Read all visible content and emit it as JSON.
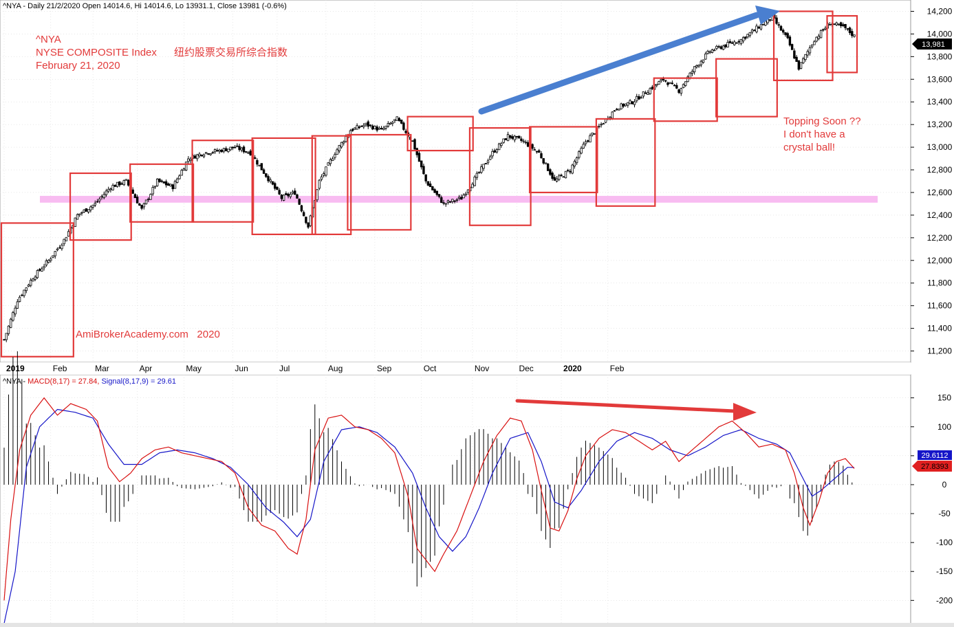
{
  "header": {
    "price_title": "^NYA - Daily 21/2/2020 Open 14014.6, Hi 14014.6, Lo 13931.1, Close 13981 (-0.6%)",
    "macd_prefix": "^NYA - ",
    "macd_label": "MACD(8,17) = 27.84,",
    "signal_label": "Signal(8,17,9) = 29.61"
  },
  "annotations": {
    "symbol": "^NYA",
    "index_name": "NYSE COMPOSITE Index",
    "index_name_cn": "纽约股票交易所综合指数",
    "date": "February 21, 2020",
    "watermark": "AmiBrokerAcademy.com   2020",
    "topping_1": "Topping Soon ??",
    "topping_2": "I don't have a",
    "topping_3": "crystal ball!"
  },
  "colors": {
    "box": "#e23a3a",
    "band": "#f8b8f0",
    "arrow_up": "#4a7fd0",
    "arrow_down": "#e23a3a",
    "macd_line": "#d81010",
    "signal_line": "#1515c8",
    "grid": "#d9d9d9"
  },
  "chart_data": [
    {
      "type": "candlestick",
      "series_name": "^NYA",
      "ylim": [
        11100,
        14300
      ],
      "y_ticks": [
        11200,
        11400,
        11600,
        11800,
        12000,
        12200,
        12400,
        12600,
        12800,
        13000,
        13200,
        13400,
        13600,
        13800,
        14000,
        14200
      ],
      "last_value_label": "13,981",
      "x_labels": [
        "2019",
        "Feb",
        "Mar",
        "Apr",
        "May",
        "Jun",
        "Jul",
        "Aug",
        "Sep",
        "Oct",
        "Nov",
        "Dec",
        "2020",
        "Feb"
      ],
      "bold_x_labels": [
        "2019",
        "2020"
      ],
      "approx_close_path": [
        {
          "d": 0,
          "v": 11300
        },
        {
          "d": 6,
          "v": 11650
        },
        {
          "d": 13,
          "v": 11850
        },
        {
          "d": 20,
          "v": 12000
        },
        {
          "d": 27,
          "v": 12180
        },
        {
          "d": 33,
          "v": 12400
        },
        {
          "d": 41,
          "v": 12500
        },
        {
          "d": 48,
          "v": 12650
        },
        {
          "d": 55,
          "v": 12700
        },
        {
          "d": 62,
          "v": 12450
        },
        {
          "d": 69,
          "v": 12700
        },
        {
          "d": 76,
          "v": 12650
        },
        {
          "d": 83,
          "v": 12900
        },
        {
          "d": 90,
          "v": 12950
        },
        {
          "d": 97,
          "v": 12970
        },
        {
          "d": 104,
          "v": 13000
        },
        {
          "d": 111,
          "v": 12950
        },
        {
          "d": 118,
          "v": 12750
        },
        {
          "d": 125,
          "v": 12550
        },
        {
          "d": 131,
          "v": 12600
        },
        {
          "d": 137,
          "v": 12300
        },
        {
          "d": 142,
          "v": 12700
        },
        {
          "d": 149,
          "v": 12950
        },
        {
          "d": 156,
          "v": 13150
        },
        {
          "d": 163,
          "v": 13200
        },
        {
          "d": 170,
          "v": 13150
        },
        {
          "d": 177,
          "v": 13250
        },
        {
          "d": 184,
          "v": 13050
        },
        {
          "d": 190,
          "v": 12700
        },
        {
          "d": 198,
          "v": 12500
        },
        {
          "d": 206,
          "v": 12550
        },
        {
          "d": 213,
          "v": 12750
        },
        {
          "d": 220,
          "v": 12950
        },
        {
          "d": 227,
          "v": 13100
        },
        {
          "d": 234,
          "v": 13050
        },
        {
          "d": 241,
          "v": 12950
        },
        {
          "d": 248,
          "v": 12700
        },
        {
          "d": 255,
          "v": 12800
        },
        {
          "d": 262,
          "v": 13050
        },
        {
          "d": 269,
          "v": 13200
        },
        {
          "d": 276,
          "v": 13350
        },
        {
          "d": 283,
          "v": 13400
        },
        {
          "d": 290,
          "v": 13500
        },
        {
          "d": 297,
          "v": 13600
        },
        {
          "d": 304,
          "v": 13500
        },
        {
          "d": 311,
          "v": 13700
        },
        {
          "d": 318,
          "v": 13850
        },
        {
          "d": 325,
          "v": 13900
        },
        {
          "d": 332,
          "v": 13950
        },
        {
          "d": 339,
          "v": 14050
        },
        {
          "d": 346,
          "v": 14150
        },
        {
          "d": 353,
          "v": 13950
        },
        {
          "d": 358,
          "v": 13700
        },
        {
          "d": 365,
          "v": 13950
        },
        {
          "d": 372,
          "v": 14100
        },
        {
          "d": 379,
          "v": 14050
        },
        {
          "d": 383,
          "v": 13981
        }
      ],
      "support_band": {
        "low": 12510,
        "high": 12570
      },
      "boxes": [
        {
          "lo": 11150,
          "hi": 12330
        },
        {
          "lo": 12180,
          "hi": 12770
        },
        {
          "lo": 12340,
          "hi": 12850
        },
        {
          "lo": 12340,
          "hi": 13060
        },
        {
          "lo": 12230,
          "hi": 13080
        },
        {
          "lo": 12230,
          "hi": 13100
        },
        {
          "lo": 12270,
          "hi": 13110
        },
        {
          "lo": 12970,
          "hi": 13270
        },
        {
          "lo": 12310,
          "hi": 13170
        },
        {
          "lo": 12600,
          "hi": 13180
        },
        {
          "lo": 12480,
          "hi": 13250
        },
        {
          "lo": 13230,
          "hi": 13610
        },
        {
          "lo": 13270,
          "hi": 13780
        },
        {
          "lo": 13590,
          "hi": 14200
        },
        {
          "lo": 13660,
          "hi": 14160
        }
      ]
    },
    {
      "type": "line",
      "title": "MACD(8,17)",
      "ylim": [
        -240,
        190
      ],
      "y_ticks": [
        -200,
        -150,
        -100,
        -50,
        0,
        50,
        100,
        150
      ],
      "series": [
        {
          "name": "MACD(8,17)",
          "last": 27.84,
          "last_label": "27.8393"
        },
        {
          "name": "Signal(8,17,9)",
          "last": 29.61,
          "last_label": "29.6112"
        }
      ],
      "macd_approx": [
        {
          "d": 0,
          "v": -200
        },
        {
          "d": 3,
          "v": -60
        },
        {
          "d": 7,
          "v": 60
        },
        {
          "d": 12,
          "v": 120
        },
        {
          "d": 18,
          "v": 150
        },
        {
          "d": 24,
          "v": 120
        },
        {
          "d": 30,
          "v": 140
        },
        {
          "d": 37,
          "v": 130
        },
        {
          "d": 42,
          "v": 110
        },
        {
          "d": 47,
          "v": 30
        },
        {
          "d": 52,
          "v": 5
        },
        {
          "d": 57,
          "v": 20
        },
        {
          "d": 62,
          "v": 45
        },
        {
          "d": 68,
          "v": 60
        },
        {
          "d": 74,
          "v": 65
        },
        {
          "d": 80,
          "v": 55
        },
        {
          "d": 86,
          "v": 50
        },
        {
          "d": 92,
          "v": 45
        },
        {
          "d": 98,
          "v": 40
        },
        {
          "d": 104,
          "v": 20
        },
        {
          "d": 110,
          "v": -40
        },
        {
          "d": 116,
          "v": -70
        },
        {
          "d": 122,
          "v": -80
        },
        {
          "d": 128,
          "v": -110
        },
        {
          "d": 132,
          "v": -120
        },
        {
          "d": 136,
          "v": -60
        },
        {
          "d": 140,
          "v": 60
        },
        {
          "d": 146,
          "v": 115
        },
        {
          "d": 152,
          "v": 120
        },
        {
          "d": 158,
          "v": 100
        },
        {
          "d": 164,
          "v": 95
        },
        {
          "d": 170,
          "v": 80
        },
        {
          "d": 176,
          "v": 55
        },
        {
          "d": 182,
          "v": -20
        },
        {
          "d": 186,
          "v": -110
        },
        {
          "d": 190,
          "v": -130
        },
        {
          "d": 194,
          "v": -150
        },
        {
          "d": 198,
          "v": -120
        },
        {
          "d": 204,
          "v": -80
        },
        {
          "d": 210,
          "v": -20
        },
        {
          "d": 216,
          "v": 40
        },
        {
          "d": 222,
          "v": 85
        },
        {
          "d": 228,
          "v": 115
        },
        {
          "d": 233,
          "v": 110
        },
        {
          "d": 238,
          "v": 60
        },
        {
          "d": 242,
          "v": -10
        },
        {
          "d": 246,
          "v": -75
        },
        {
          "d": 250,
          "v": -80
        },
        {
          "d": 254,
          "v": -45
        },
        {
          "d": 258,
          "v": 10
        },
        {
          "d": 262,
          "v": 50
        },
        {
          "d": 268,
          "v": 80
        },
        {
          "d": 274,
          "v": 95
        },
        {
          "d": 280,
          "v": 90
        },
        {
          "d": 286,
          "v": 75
        },
        {
          "d": 292,
          "v": 60
        },
        {
          "d": 298,
          "v": 75
        },
        {
          "d": 304,
          "v": 40
        },
        {
          "d": 310,
          "v": 60
        },
        {
          "d": 316,
          "v": 80
        },
        {
          "d": 322,
          "v": 100
        },
        {
          "d": 328,
          "v": 110
        },
        {
          "d": 334,
          "v": 90
        },
        {
          "d": 340,
          "v": 65
        },
        {
          "d": 346,
          "v": 70
        },
        {
          "d": 352,
          "v": 60
        },
        {
          "d": 356,
          "v": 20
        },
        {
          "d": 360,
          "v": -40
        },
        {
          "d": 363,
          "v": -70
        },
        {
          "d": 367,
          "v": -30
        },
        {
          "d": 371,
          "v": 20
        },
        {
          "d": 375,
          "v": 40
        },
        {
          "d": 379,
          "v": 45
        },
        {
          "d": 383,
          "v": 27.84
        }
      ],
      "signal_approx": [
        {
          "d": 0,
          "v": -240
        },
        {
          "d": 5,
          "v": -150
        },
        {
          "d": 10,
          "v": 30
        },
        {
          "d": 16,
          "v": 100
        },
        {
          "d": 24,
          "v": 130
        },
        {
          "d": 32,
          "v": 125
        },
        {
          "d": 40,
          "v": 115
        },
        {
          "d": 47,
          "v": 70
        },
        {
          "d": 54,
          "v": 35
        },
        {
          "d": 62,
          "v": 35
        },
        {
          "d": 70,
          "v": 55
        },
        {
          "d": 78,
          "v": 60
        },
        {
          "d": 86,
          "v": 55
        },
        {
          "d": 94,
          "v": 45
        },
        {
          "d": 102,
          "v": 30
        },
        {
          "d": 110,
          "v": 0
        },
        {
          "d": 118,
          "v": -40
        },
        {
          "d": 126,
          "v": -65
        },
        {
          "d": 132,
          "v": -90
        },
        {
          "d": 138,
          "v": -60
        },
        {
          "d": 144,
          "v": 40
        },
        {
          "d": 152,
          "v": 95
        },
        {
          "d": 160,
          "v": 100
        },
        {
          "d": 168,
          "v": 90
        },
        {
          "d": 176,
          "v": 65
        },
        {
          "d": 184,
          "v": 20
        },
        {
          "d": 190,
          "v": -40
        },
        {
          "d": 196,
          "v": -90
        },
        {
          "d": 202,
          "v": -115
        },
        {
          "d": 208,
          "v": -90
        },
        {
          "d": 214,
          "v": -40
        },
        {
          "d": 220,
          "v": 20
        },
        {
          "d": 228,
          "v": 80
        },
        {
          "d": 236,
          "v": 90
        },
        {
          "d": 242,
          "v": 40
        },
        {
          "d": 248,
          "v": -30
        },
        {
          "d": 254,
          "v": -40
        },
        {
          "d": 260,
          "v": -10
        },
        {
          "d": 268,
          "v": 40
        },
        {
          "d": 276,
          "v": 75
        },
        {
          "d": 284,
          "v": 90
        },
        {
          "d": 292,
          "v": 80
        },
        {
          "d": 300,
          "v": 60
        },
        {
          "d": 308,
          "v": 50
        },
        {
          "d": 316,
          "v": 65
        },
        {
          "d": 324,
          "v": 85
        },
        {
          "d": 332,
          "v": 95
        },
        {
          "d": 340,
          "v": 80
        },
        {
          "d": 348,
          "v": 70
        },
        {
          "d": 354,
          "v": 55
        },
        {
          "d": 360,
          "v": 10
        },
        {
          "d": 364,
          "v": -20
        },
        {
          "d": 368,
          "v": -10
        },
        {
          "d": 374,
          "v": 10
        },
        {
          "d": 380,
          "v": 30
        },
        {
          "d": 383,
          "v": 29.61
        }
      ]
    }
  ]
}
